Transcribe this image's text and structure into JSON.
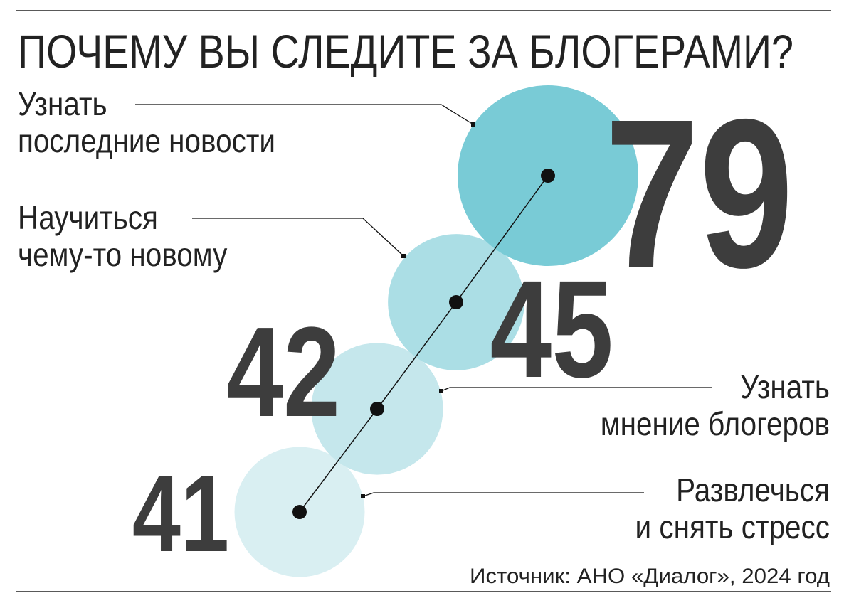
{
  "chart_data": {
    "type": "bubble",
    "title": "ПОЧЕМУ ВЫ СЛЕДИТЕ ЗА БЛОГЕРАМИ?",
    "categories": [
      [
        "Узнать",
        "последние новости"
      ],
      [
        "Научиться",
        "чему-то новому"
      ],
      [
        "Узнать",
        "мнение блогеров"
      ],
      [
        "Развлечься",
        "и снять стресс"
      ]
    ],
    "values": [
      79,
      45,
      42,
      41
    ],
    "colors": [
      "#79cbd6",
      "#abdee5",
      "#c5e7ec",
      "#d9eff2"
    ],
    "source": "Источник: АНО «Диалог», 2024 год"
  }
}
